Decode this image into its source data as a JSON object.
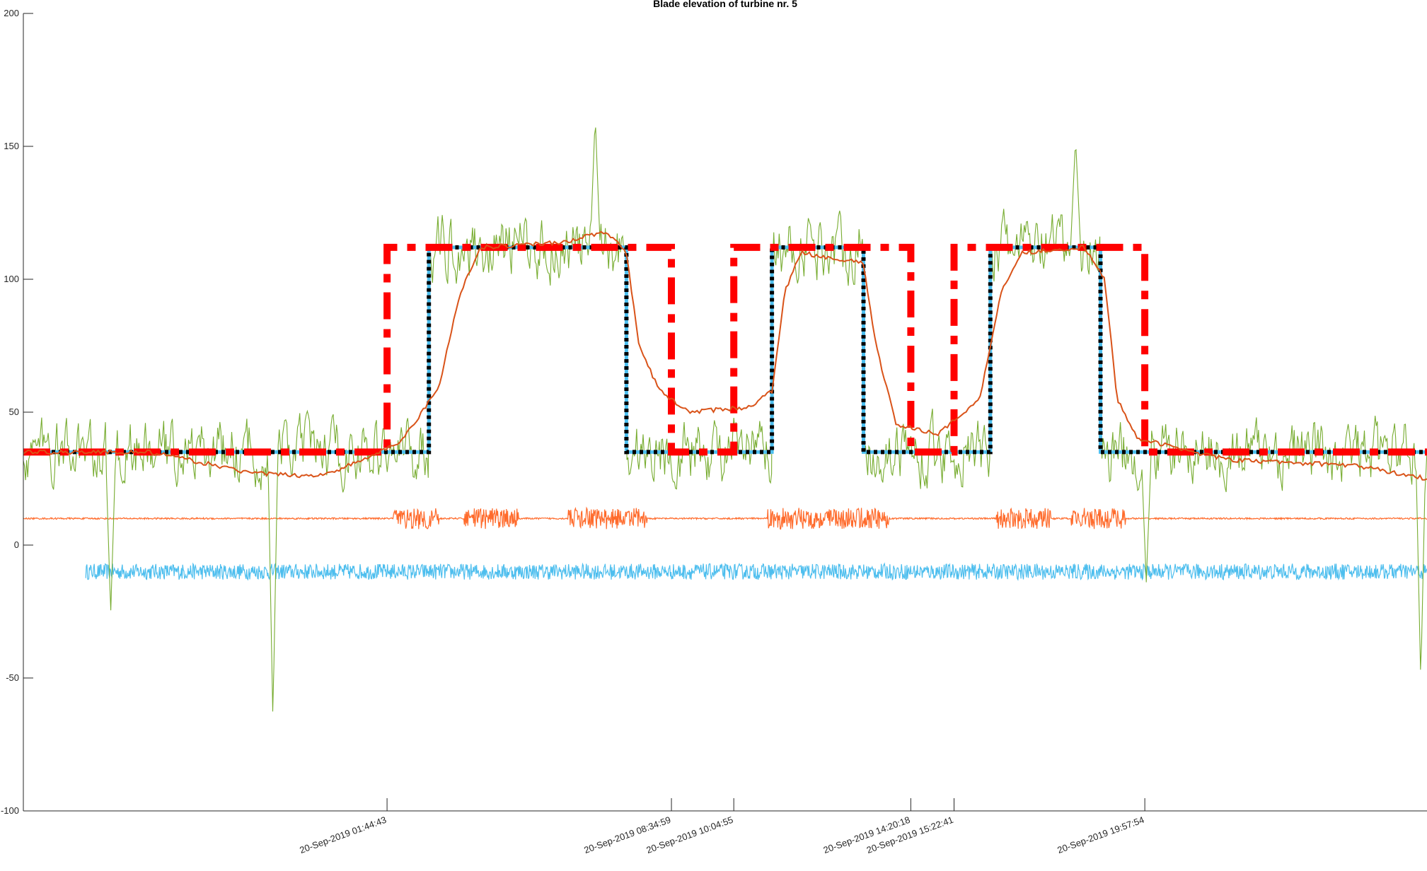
{
  "chart_data": {
    "type": "line",
    "title": "Blade elevation of turbine nr. 5",
    "xlabel": "",
    "ylabel": "",
    "ylim": [
      -100,
      200
    ],
    "yticks": [
      -100,
      -50,
      0,
      50,
      100,
      150,
      200
    ],
    "xlim_hours": [
      -7.0,
      26.75
    ],
    "x_tick_hours": [
      1.745,
      8.583,
      10.082,
      14.338,
      15.378,
      19.965
    ],
    "x_tick_labels": [
      "20-Sep-2019 01:44:43",
      "20-Sep-2019 08:34:59",
      "20-Sep-2019 10:04:55",
      "20-Sep-2019 14:20:18",
      "20-Sep-2019 15:22:41",
      "20-Sep-2019 19:57:54"
    ],
    "colors": {
      "noisy_measurement": "#77AC30",
      "smoothed": "#D95319",
      "reference": "#4DBEEE",
      "detected_state": "#000000",
      "predicted_state": "#FF0000",
      "status_signal": "#FF6B2C",
      "residual_band": "#4DBEEE"
    },
    "series": [
      {
        "key": "reference",
        "style": "solid-thick",
        "points": [
          [
            -7.0,
            35
          ],
          [
            2.75,
            35
          ],
          [
            2.75,
            112
          ],
          [
            7.5,
            112
          ],
          [
            7.5,
            35
          ],
          [
            11.0,
            35
          ],
          [
            11.0,
            112
          ],
          [
            13.2,
            112
          ],
          [
            13.2,
            35
          ],
          [
            16.25,
            35
          ],
          [
            16.25,
            112
          ],
          [
            18.9,
            112
          ],
          [
            18.9,
            35
          ],
          [
            26.75,
            35
          ]
        ]
      },
      {
        "key": "detected_state",
        "style": "dotted",
        "points": [
          [
            -7.0,
            35
          ],
          [
            2.75,
            35
          ],
          [
            2.75,
            112
          ],
          [
            7.5,
            112
          ],
          [
            7.5,
            35
          ],
          [
            11.0,
            35
          ],
          [
            11.0,
            112
          ],
          [
            13.2,
            112
          ],
          [
            13.2,
            35
          ],
          [
            16.25,
            35
          ],
          [
            16.25,
            112
          ],
          [
            18.9,
            112
          ],
          [
            18.9,
            35
          ],
          [
            26.75,
            35
          ]
        ]
      },
      {
        "key": "predicted_state",
        "style": "dashed",
        "points": [
          [
            -7.0,
            35
          ],
          [
            1.745,
            35
          ],
          [
            1.745,
            112
          ],
          [
            8.583,
            112
          ],
          [
            8.583,
            35
          ],
          [
            10.082,
            35
          ],
          [
            10.082,
            112
          ],
          [
            14.338,
            112
          ],
          [
            14.338,
            35
          ],
          [
            15.378,
            35
          ],
          [
            15.378,
            112
          ],
          [
            19.965,
            112
          ],
          [
            19.965,
            35
          ],
          [
            26.75,
            35
          ]
        ]
      },
      {
        "key": "smoothed",
        "style": "solid",
        "points": [
          [
            -7.0,
            35
          ],
          [
            -6.0,
            35
          ],
          [
            -4.0,
            35
          ],
          [
            -3.0,
            32
          ],
          [
            -1.5,
            27
          ],
          [
            0.0,
            26
          ],
          [
            0.5,
            28
          ],
          [
            1.0,
            31
          ],
          [
            2.0,
            38
          ],
          [
            2.5,
            48
          ],
          [
            3.0,
            60
          ],
          [
            3.5,
            95
          ],
          [
            4.0,
            112
          ],
          [
            6.0,
            114
          ],
          [
            7.0,
            118
          ],
          [
            7.5,
            110
          ],
          [
            7.8,
            75
          ],
          [
            8.3,
            58
          ],
          [
            9.0,
            50
          ],
          [
            10.5,
            52
          ],
          [
            11.0,
            58
          ],
          [
            11.3,
            95
          ],
          [
            11.7,
            110
          ],
          [
            13.2,
            106
          ],
          [
            13.5,
            75
          ],
          [
            14.0,
            45
          ],
          [
            15.0,
            42
          ],
          [
            16.0,
            55
          ],
          [
            16.5,
            95
          ],
          [
            17.0,
            110
          ],
          [
            18.5,
            112
          ],
          [
            19.0,
            100
          ],
          [
            19.3,
            55
          ],
          [
            19.8,
            40
          ],
          [
            22.0,
            32
          ],
          [
            25.0,
            30
          ],
          [
            26.75,
            25
          ]
        ]
      }
    ],
    "noisy_measurement": {
      "baseline_segments": [
        [
          -7.0,
          35
        ],
        [
          2.75,
          35
        ],
        [
          2.75,
          112
        ],
        [
          7.5,
          112
        ],
        [
          7.5,
          35
        ],
        [
          11.0,
          35
        ],
        [
          11.0,
          112
        ],
        [
          13.2,
          112
        ],
        [
          13.2,
          35
        ],
        [
          16.25,
          35
        ],
        [
          16.25,
          112
        ],
        [
          18.9,
          112
        ],
        [
          18.9,
          35
        ],
        [
          26.75,
          35
        ]
      ],
      "range": [
        -65,
        161
      ],
      "peaks": [
        [
          6.75,
          161
        ],
        [
          18.3,
          153
        ],
        [
          -1.0,
          -65
        ],
        [
          -4.9,
          -26
        ],
        [
          26.6,
          -51
        ],
        [
          20.0,
          -14
        ]
      ]
    },
    "status_signal": {
      "level": 10,
      "burst_amplitude": 4,
      "bursts": [
        [
          1.9,
          3.0
        ],
        [
          3.6,
          4.9
        ],
        [
          6.1,
          8.0
        ],
        [
          10.9,
          13.8
        ],
        [
          16.4,
          17.7
        ],
        [
          18.2,
          19.5
        ]
      ]
    },
    "residual_band": {
      "level": -10,
      "half_width": 3,
      "x_start": -5.5,
      "x_end": 26.75
    }
  }
}
